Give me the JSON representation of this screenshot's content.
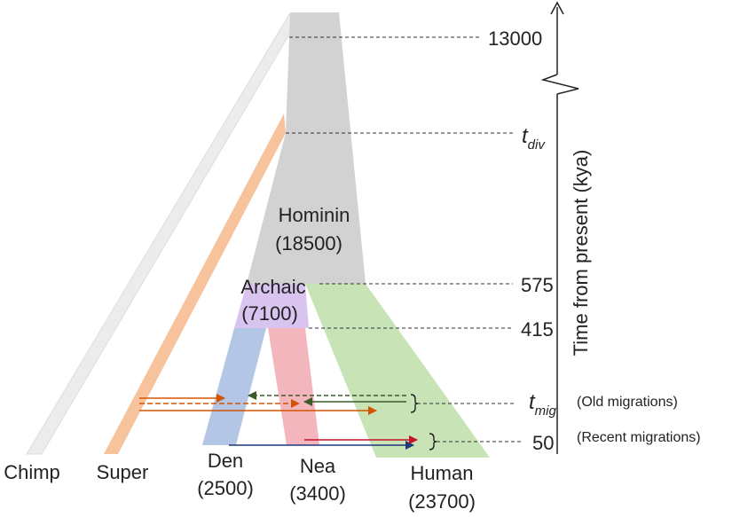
{
  "colors": {
    "chimp": "#ececec",
    "super": "#f7c39c",
    "hominin": "#d2d2d2",
    "archaic": "#d9c3ef",
    "den": "#b4c6e6",
    "nea": "#f4b6bd",
    "human": "#c8e3b6",
    "arrow_orange": "#d35400",
    "arrow_darkgreen": "#3c5a28",
    "arrow_navy": "#1f3a7a",
    "arrow_red": "#c8102e",
    "text": "#222222"
  },
  "lineages": {
    "chimp": "Chimp",
    "super": "Super",
    "hominin": {
      "name": "Hominin",
      "size": "(18500)"
    },
    "archaic": {
      "name": "Archaic",
      "size": "(7100)"
    },
    "den": {
      "name": "Den",
      "size": "(2500)"
    },
    "nea": {
      "name": "Nea",
      "size": "(3400)"
    },
    "human": {
      "name": "Human",
      "size": "(23700)"
    }
  },
  "time_axis": {
    "title": "Time from present (kya)",
    "ticks": {
      "t13000": "13000",
      "tdiv_base": "t",
      "tdiv_sub": "div",
      "t575": "575",
      "t415": "415",
      "tmig_base": "t",
      "tmig_sub": "mig",
      "t50": "50"
    }
  },
  "annotations": {
    "old": "(Old migrations)",
    "recent": "(Recent migrations)"
  },
  "icons": {
    "axis_arrow": "arrow-up-icon",
    "axis_break": "zigzag-break-icon",
    "brace": "right-brace-icon"
  }
}
